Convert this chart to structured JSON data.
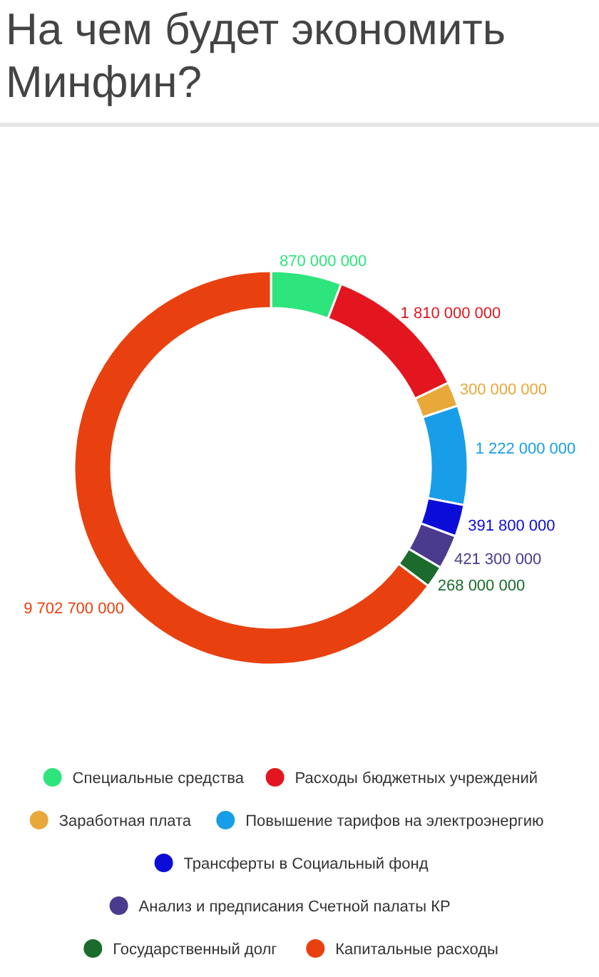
{
  "chart_data": {
    "type": "donut",
    "title": "На чем будет экономить Минфин?",
    "categories": [
      "Специальные средства",
      "Расходы бюджетных учреждений",
      "Заработная плата",
      "Повышение тарифов на электроэнергию",
      "Трансферты в Социальный фонд",
      "Анализ и предписания Счетной палаты КР",
      "Государственный долг",
      "Капитальные расходы"
    ],
    "values": [
      870000000,
      1810000000,
      300000000,
      1222000000,
      391800000,
      421300000,
      268000000,
      9702700000
    ],
    "value_labels": [
      "870 000 000",
      "1 810 000 000",
      "300 000 000",
      "1 222 000 000",
      "391 800 000",
      "421 300 000",
      "268 000 000",
      "9 702 700 000"
    ],
    "colors": [
      "#2de57c",
      "#e3161f",
      "#e8a83a",
      "#189ee8",
      "#0c0cd9",
      "#4b3b8e",
      "#1b6b2c",
      "#e8410f"
    ],
    "legend": "bottom"
  }
}
